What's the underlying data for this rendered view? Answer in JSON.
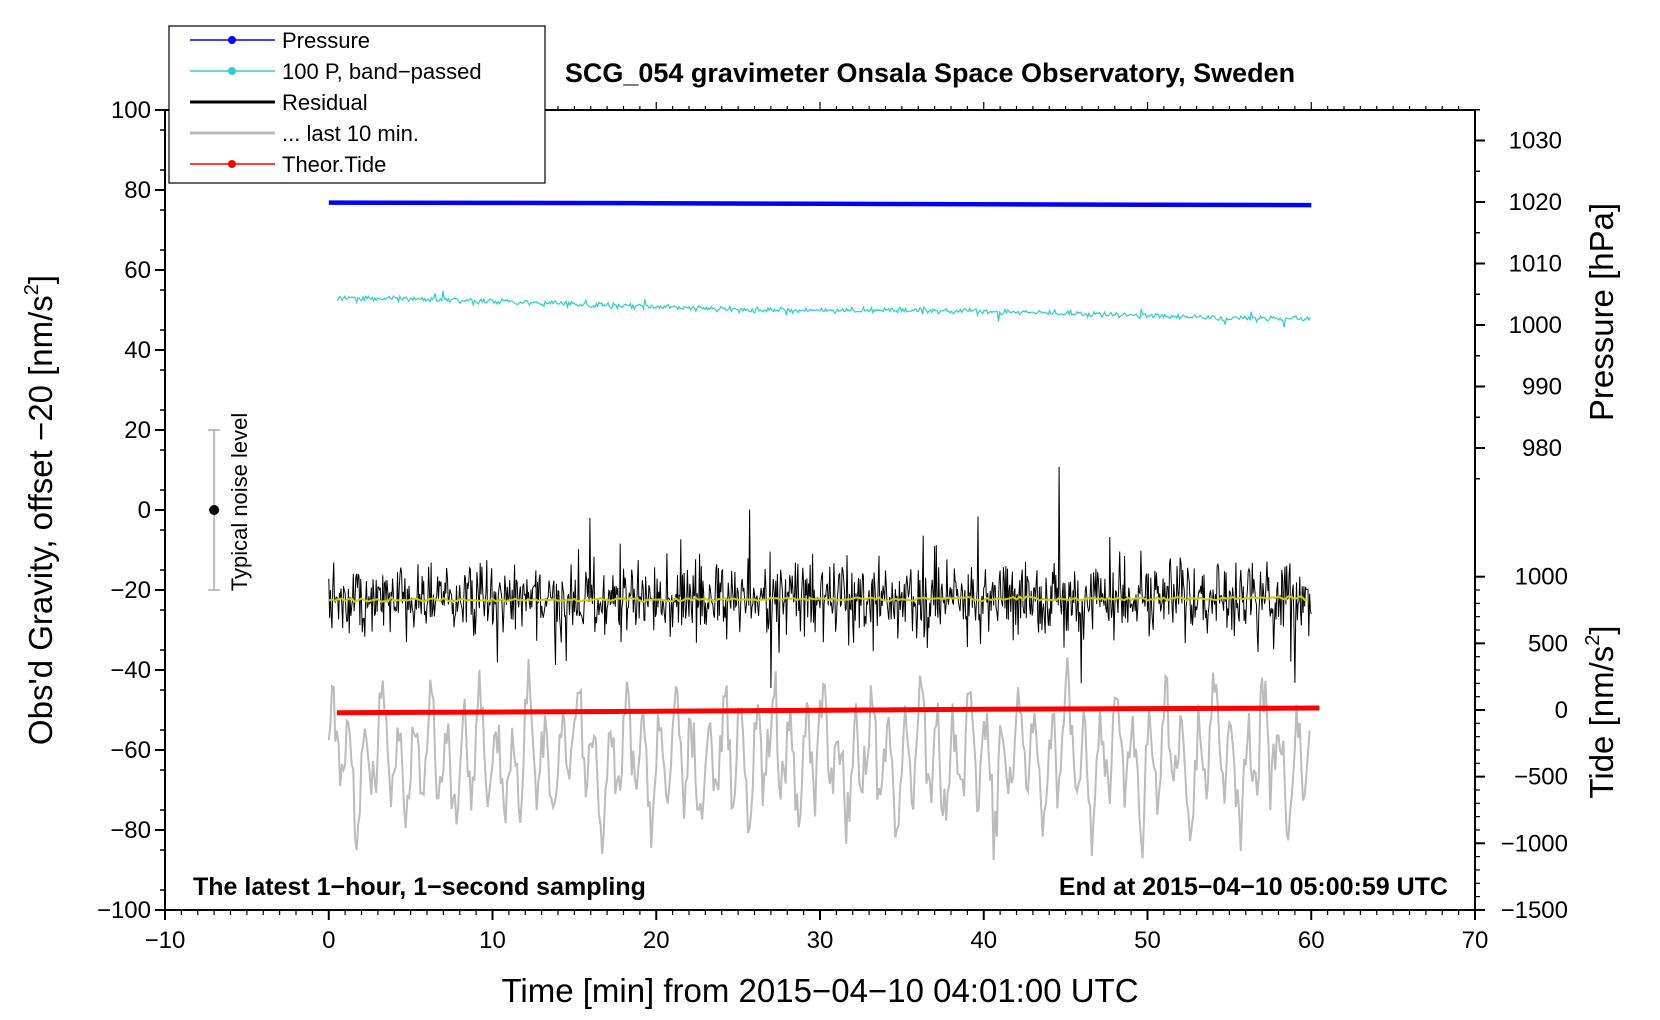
{
  "chart_data": {
    "type": "line",
    "title": "SCG_054 gravimeter Onsala Space Observatory, Sweden",
    "xlabel": "Time [min] from 2015−04−10 04:01:00 UTC",
    "ylabel_left": "Obs'd Gravity, offset −20 [nm/s²]",
    "ylabel_left_main": "Obs'd Gravity, offset −20 [nm/s",
    "ylabel_left_sup": "2",
    "ylabel_left_end": "]",
    "ylabel_right_pressure": "Pressure [hPa]",
    "ylabel_right_tide_main": "Tide [nm/s",
    "ylabel_right_tide_sup": "2",
    "ylabel_right_tide_end": "]",
    "xlim": [
      -10,
      70
    ],
    "ylim": [
      -100,
      100
    ],
    "xticks": [
      -10,
      0,
      10,
      20,
      30,
      40,
      50,
      60,
      70
    ],
    "xtick_labels": [
      "−10",
      "0",
      "10",
      "20",
      "30",
      "40",
      "50",
      "60",
      "70"
    ],
    "yticks": [
      -100,
      -80,
      -60,
      -40,
      -20,
      0,
      20,
      40,
      60,
      80,
      100
    ],
    "ytick_labels": [
      "−100",
      "−80",
      "−60",
      "−40",
      "−20",
      "0",
      "20",
      "40",
      "60",
      "80",
      "100"
    ],
    "pressure_ticks": [
      980,
      990,
      1000,
      1010,
      1020,
      1030
    ],
    "pressure_tick_labels": [
      "980",
      "990",
      "1000",
      "1010",
      "1020",
      "1030"
    ],
    "tide_ticks": [
      -1500,
      -1000,
      -500,
      0,
      500,
      1000
    ],
    "tide_tick_labels": [
      "−1500",
      "−1000",
      "−500",
      "0",
      "500",
      "1000"
    ],
    "note_left": "The latest 1−hour, 1−second sampling",
    "note_right": "End at 2015−04−10 05:00:59 UTC",
    "noise_label": "Typical noise level",
    "noise_bar": {
      "x": -7,
      "y_center": 0,
      "y_min": -20,
      "y_max": 20
    },
    "legend": [
      {
        "label": "Pressure",
        "color": "#0000ff",
        "marker": true
      },
      {
        "label": "100 P, band−passed",
        "color": "#33cccc",
        "marker": true
      },
      {
        "label": "Residual",
        "color": "#000000",
        "marker": false
      },
      {
        "label": "... last 10 min.",
        "color": "#bbbbbb",
        "marker": false
      },
      {
        "label": "Theor.Tide",
        "color": "#ff0000",
        "marker": true
      }
    ],
    "series": [
      {
        "name": "Pressure",
        "axis": "pressure",
        "color": "#0000ff",
        "x": [
          0,
          10,
          20,
          30,
          40,
          50,
          60
        ],
        "values": [
          1019.9,
          1019.85,
          1019.8,
          1019.7,
          1019.65,
          1019.55,
          1019.5
        ]
      },
      {
        "name": "100 P, band-passed",
        "axis": "left",
        "color": "#33cccc",
        "x": [
          0.5,
          5,
          10,
          15,
          20,
          25,
          30,
          35,
          40,
          45,
          50,
          55,
          60
        ],
        "values": [
          53,
          52.8,
          52.2,
          51.5,
          50.8,
          50.2,
          49.8,
          50,
          49.6,
          49.2,
          48.6,
          48,
          47.8
        ]
      },
      {
        "name": "Residual",
        "axis": "left",
        "color": "#000000",
        "x": [
          0,
          60
        ],
        "values": [
          -22.5,
          -22
        ]
      },
      {
        "name": "Residual smoothed",
        "axis": "left",
        "color": "#cccc00",
        "x": [
          0,
          10,
          20,
          30,
          40,
          50,
          60
        ],
        "values": [
          -22.5,
          -22.6,
          -22.4,
          -22.3,
          -22.3,
          -22.2,
          -22
        ]
      },
      {
        "name": "... last 10 min.",
        "axis": "left",
        "color": "#bbbbbb",
        "x": [
          0,
          60
        ],
        "values": [
          -62,
          -62
        ]
      },
      {
        "name": "Theor.Tide",
        "axis": "tide",
        "color": "#ff0000",
        "x": [
          0.5,
          20,
          40,
          60.5
        ],
        "values": [
          -20,
          -10,
          5,
          15
        ]
      }
    ]
  }
}
